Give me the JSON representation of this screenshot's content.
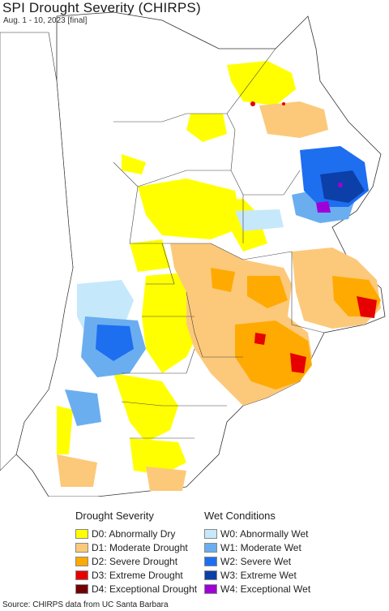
{
  "header": {
    "title": "SPI Drought Severity (CHIRPS)",
    "subtitle": "Aug. 1 - 10, 2023 [final]"
  },
  "legend": {
    "drought_heading": "Drought Severity",
    "wet_heading": "Wet Conditions",
    "drought_items": [
      {
        "label": "D0: Abnormally Dry",
        "color": "#ffff00"
      },
      {
        "label": "D1: Moderate Drought",
        "color": "#fcc97a"
      },
      {
        "label": "D2: Severe Drought",
        "color": "#ffaa00"
      },
      {
        "label": "D3: Extreme Drought",
        "color": "#e60000"
      },
      {
        "label": "D4: Exceptional Drought",
        "color": "#730000"
      }
    ],
    "wet_items": [
      {
        "label": "W0: Abnormally Wet",
        "color": "#c6e8fb"
      },
      {
        "label": "W1: Moderate Wet",
        "color": "#6aaef0"
      },
      {
        "label": "W2: Severe Wet",
        "color": "#1e6ef0"
      },
      {
        "label": "W3: Extreme Wet",
        "color": "#0c3fa8"
      },
      {
        "label": "W4: Exceptional Wet",
        "color": "#a000d8"
      }
    ]
  },
  "footer": {
    "source": "Source: CHIRPS data from UC Santa Barbara"
  }
}
